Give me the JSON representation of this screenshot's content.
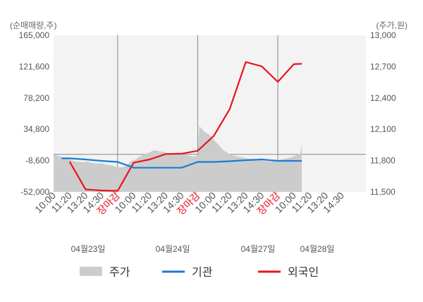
{
  "chart_data": {
    "type": "line",
    "left_axis_label": "(순매매량,주)",
    "right_axis_label": "(주가,원)",
    "left_ticks": [
      "165,000",
      "121,600",
      "78,200",
      "34,800",
      "-8,600",
      "-52,000"
    ],
    "right_ticks": [
      "13,000",
      "12,700",
      "12,400",
      "12,100",
      "11,800",
      "11,500"
    ],
    "ylim_left": [
      -52000,
      165000
    ],
    "ylim_right": [
      11500,
      13000
    ],
    "x_ticks": [
      {
        "label": "10:00",
        "red": false
      },
      {
        "label": "11:20",
        "red": false
      },
      {
        "label": "13:20",
        "red": false
      },
      {
        "label": "14:30",
        "red": false
      },
      {
        "label": "장마감",
        "red": true
      },
      {
        "label": "10:00",
        "red": false
      },
      {
        "label": "11:20",
        "red": false
      },
      {
        "label": "13:20",
        "red": false
      },
      {
        "label": "14:30",
        "red": false
      },
      {
        "label": "장마감",
        "red": true
      },
      {
        "label": "10:00",
        "red": false
      },
      {
        "label": "11:20",
        "red": false
      },
      {
        "label": "13:20",
        "red": false
      },
      {
        "label": "14:30",
        "red": false
      },
      {
        "label": "장마감",
        "red": true
      },
      {
        "label": "10:00",
        "red": false
      },
      {
        "label": "11:20",
        "red": false
      },
      {
        "label": "13:20",
        "red": false
      },
      {
        "label": "14:30",
        "red": false
      }
    ],
    "day_labels": [
      "04월23일",
      "04월24일",
      "04월27일",
      "04월28일"
    ],
    "series": [
      {
        "name": "외국인",
        "color": "#e8141f",
        "axis": "left",
        "x": [
          1,
          2,
          3,
          4,
          5,
          6,
          7,
          8,
          9,
          10,
          11,
          12,
          13,
          14,
          15,
          15.5
        ],
        "values": [
          -10000,
          -48500,
          -50000,
          -50500,
          -11500,
          -7000,
          500,
          1000,
          5000,
          25500,
          63000,
          128000,
          122000,
          100500,
          125000,
          125500
        ]
      },
      {
        "name": "기관",
        "color": "#1a7bd6",
        "axis": "left",
        "x": [
          0.5,
          1,
          2,
          3,
          4,
          5,
          6,
          7,
          8,
          9,
          10,
          11,
          12,
          13,
          14,
          15,
          15.5
        ],
        "values": [
          -5500,
          -5500,
          -7000,
          -9000,
          -10500,
          -18500,
          -18500,
          -18500,
          -18500,
          -10500,
          -10500,
          -9500,
          -8000,
          -7000,
          -9000,
          -9000,
          -9000
        ]
      },
      {
        "name": "주가",
        "color": "#cccccc",
        "axis": "right",
        "type": "area",
        "x": [
          0,
          0.3,
          0.6,
          0.9,
          1.2,
          1.5,
          1.8,
          2.1,
          2.4,
          2.7,
          3.0,
          3.3,
          3.6,
          3.9,
          4.2,
          4.5,
          4.8,
          5.1,
          5.4,
          5.7,
          6.0,
          6.3,
          6.6,
          6.9,
          7.2,
          7.5,
          7.8,
          8.1,
          8.4,
          8.7,
          9.0,
          9.1,
          9.4,
          9.7,
          10.0,
          10.3,
          10.6,
          10.9,
          11.2,
          11.5,
          11.8,
          12.1,
          12.4,
          12.7,
          13.0,
          13.3,
          13.6,
          13.9,
          14.2,
          14.5,
          14.8,
          15.1,
          15.4,
          15.5
        ],
        "values": [
          11860,
          11845,
          11830,
          11820,
          11800,
          11790,
          11785,
          11790,
          11780,
          11770,
          11775,
          11760,
          11755,
          11740,
          11735,
          11745,
          11790,
          11810,
          11840,
          11860,
          11880,
          11900,
          11890,
          11880,
          11870,
          11860,
          11870,
          11860,
          11850,
          11840,
          11845,
          12130,
          12080,
          12050,
          12000,
          11950,
          11900,
          11870,
          11850,
          11840,
          11830,
          11820,
          11815,
          11810,
          11800,
          11795,
          11790,
          11800,
          11810,
          11820,
          11830,
          11850,
          11870,
          11950
        ]
      }
    ]
  },
  "legend": [
    {
      "label": "주가",
      "color": "#cccccc",
      "kind": "box"
    },
    {
      "label": "기관",
      "color": "#1a7bd6",
      "kind": "line"
    },
    {
      "label": "외국인",
      "color": "#e8141f",
      "kind": "line"
    }
  ]
}
